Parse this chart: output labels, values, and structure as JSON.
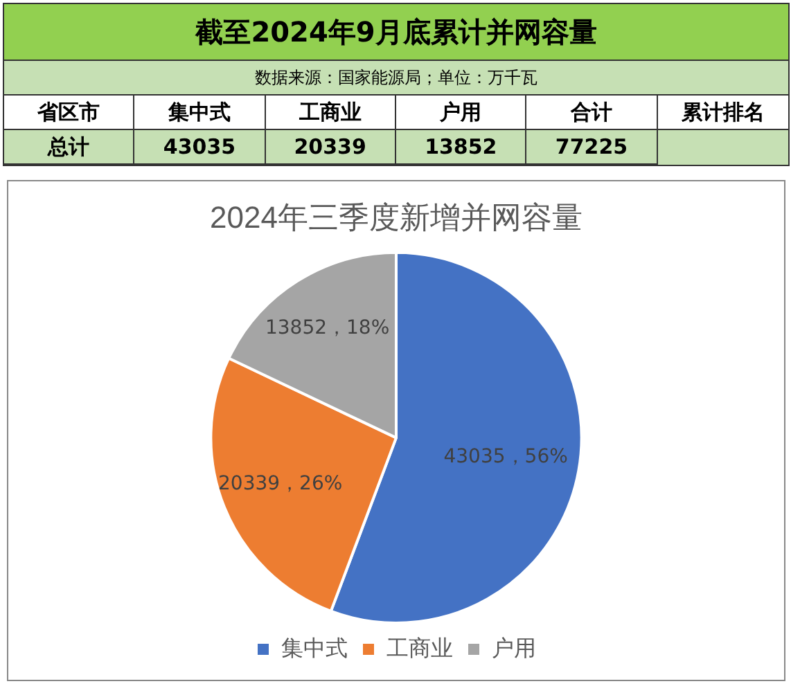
{
  "chart_data": [
    {
      "type": "other",
      "title": "截至2024年9月底累计并网容量",
      "subtitle": "数据来源：国家能源局；单位：万千瓦",
      "annotations": [
        "省区市",
        "集中式",
        "工商业",
        "户用",
        "合计",
        "累计排名",
        "总计",
        "43035",
        "20339",
        "13852",
        "77225"
      ]
    },
    {
      "type": "pie",
      "title": "2024年三季度新增并网容量",
      "categories": [
        "集中式",
        "工商业",
        "户用"
      ],
      "values": [
        43035,
        20339,
        13852
      ],
      "colors": [
        "#4472c4",
        "#ed7d31",
        "#a5a5a5"
      ],
      "value_labels": [
        "43035，56%",
        "20339，26%",
        "13852，18%"
      ],
      "legend": "bottom"
    }
  ]
}
